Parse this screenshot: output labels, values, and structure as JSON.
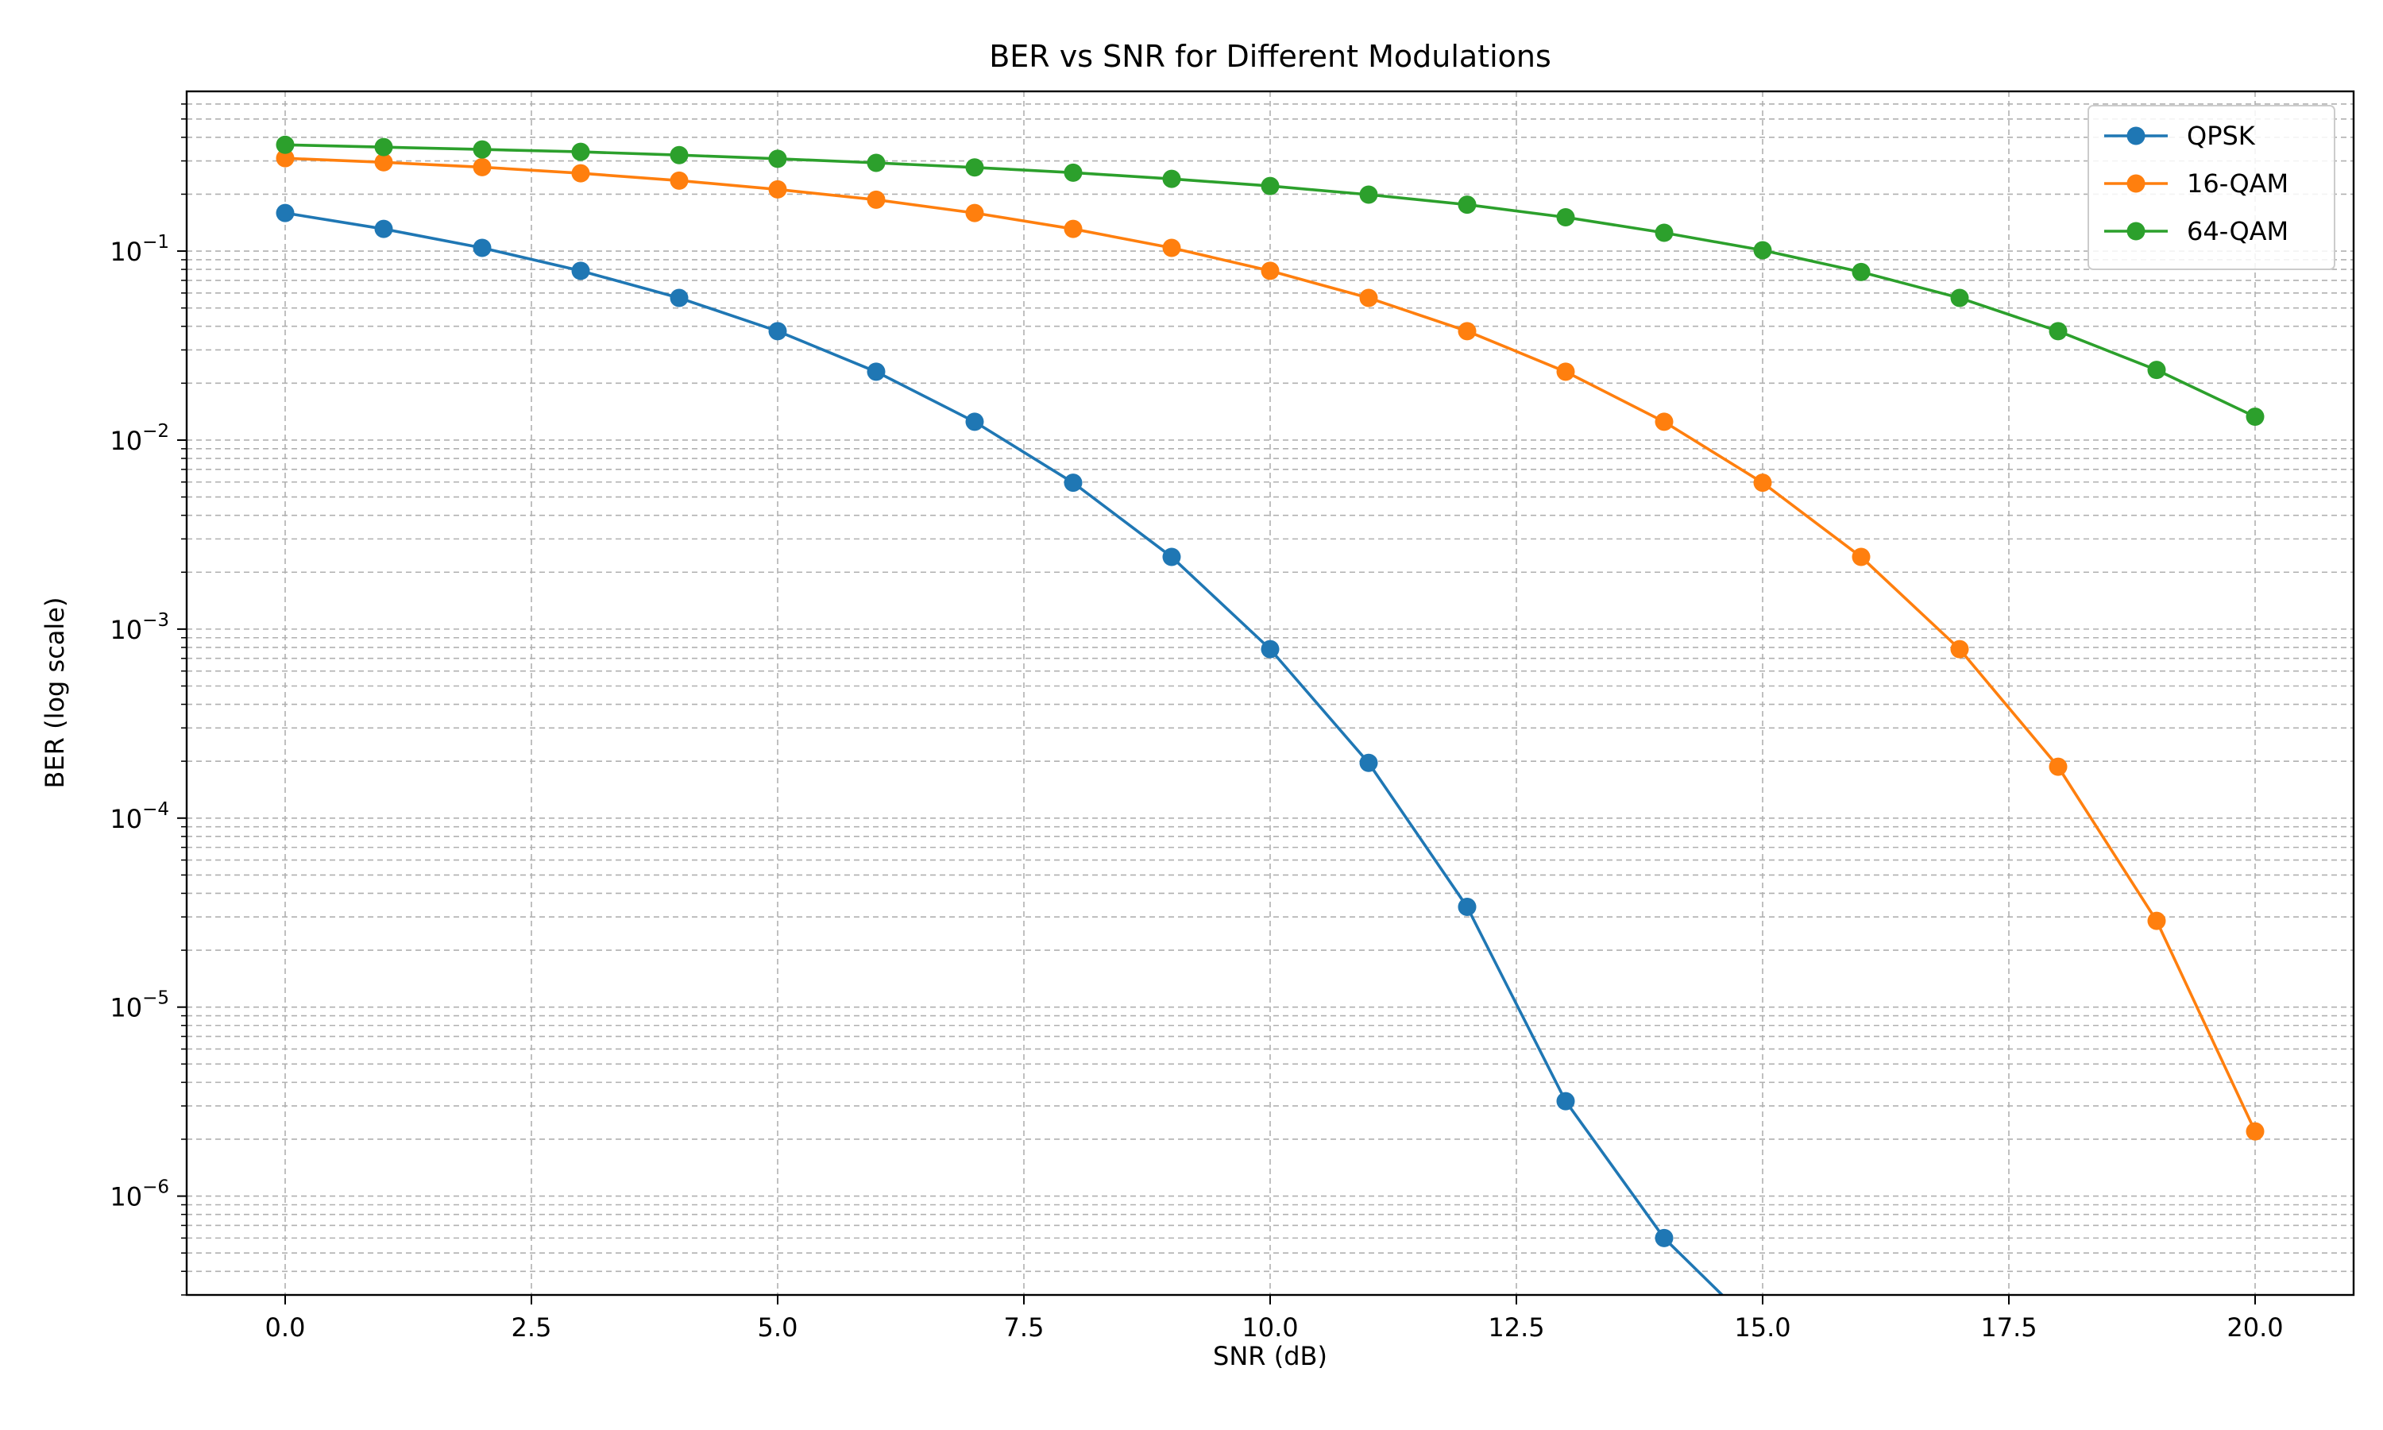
{
  "chart_data": {
    "type": "line",
    "title": "BER vs SNR for Different Modulations",
    "xlabel": "SNR (dB)",
    "ylabel": "BER (log scale)",
    "yscale": "log",
    "xlim": [
      -1,
      21
    ],
    "ylim": [
      3e-07,
      0.7
    ],
    "x_ticks": [
      0.0,
      2.5,
      5.0,
      7.5,
      10.0,
      12.5,
      15.0,
      17.5,
      20.0
    ],
    "x_tick_labels": [
      "0.0",
      "2.5",
      "5.0",
      "7.5",
      "10.0",
      "12.5",
      "15.0",
      "17.5",
      "20.0"
    ],
    "y_ticks": [
      {
        "value": 1e-06,
        "base": "10",
        "exp": "−6"
      },
      {
        "value": 1e-05,
        "base": "10",
        "exp": "−5"
      },
      {
        "value": 0.0001,
        "base": "10",
        "exp": "−4"
      },
      {
        "value": 0.001,
        "base": "10",
        "exp": "−3"
      },
      {
        "value": 0.01,
        "base": "10",
        "exp": "−2"
      },
      {
        "value": 0.1,
        "base": "10",
        "exp": "−1"
      }
    ],
    "grid": true,
    "legend_position": "top-right",
    "x": [
      0,
      1,
      2,
      3,
      4,
      5,
      6,
      7,
      8,
      9,
      10,
      11,
      12,
      13,
      14,
      15,
      16,
      17,
      18,
      19,
      20
    ],
    "series": [
      {
        "name": "QPSK",
        "color": "#1f77b4",
        "values": [
          0.159,
          0.131,
          0.104,
          0.0786,
          0.0565,
          0.0377,
          0.023,
          0.0125,
          0.00595,
          0.00241,
          0.000783,
          0.000196,
          3.39e-05,
          3.18e-06,
          6e-07,
          0,
          null,
          null,
          null,
          null,
          null
        ]
      },
      {
        "name": "16-QAM",
        "color": "#ff7f0e",
        "values": [
          0.31,
          0.295,
          0.278,
          0.258,
          0.236,
          0.212,
          0.187,
          0.159,
          0.131,
          0.104,
          0.0786,
          0.0565,
          0.0377,
          0.023,
          0.0125,
          0.00595,
          0.00241,
          0.000783,
          0.000187,
          2.86e-05,
          2.2e-06
        ]
      },
      {
        "name": "64-QAM",
        "color": "#2ca02c",
        "values": [
          0.365,
          0.355,
          0.345,
          0.335,
          0.322,
          0.308,
          0.293,
          0.277,
          0.26,
          0.241,
          0.221,
          0.199,
          0.176,
          0.151,
          0.125,
          0.101,
          0.0775,
          0.0565,
          0.0377,
          0.0235,
          0.0133
        ]
      }
    ]
  }
}
